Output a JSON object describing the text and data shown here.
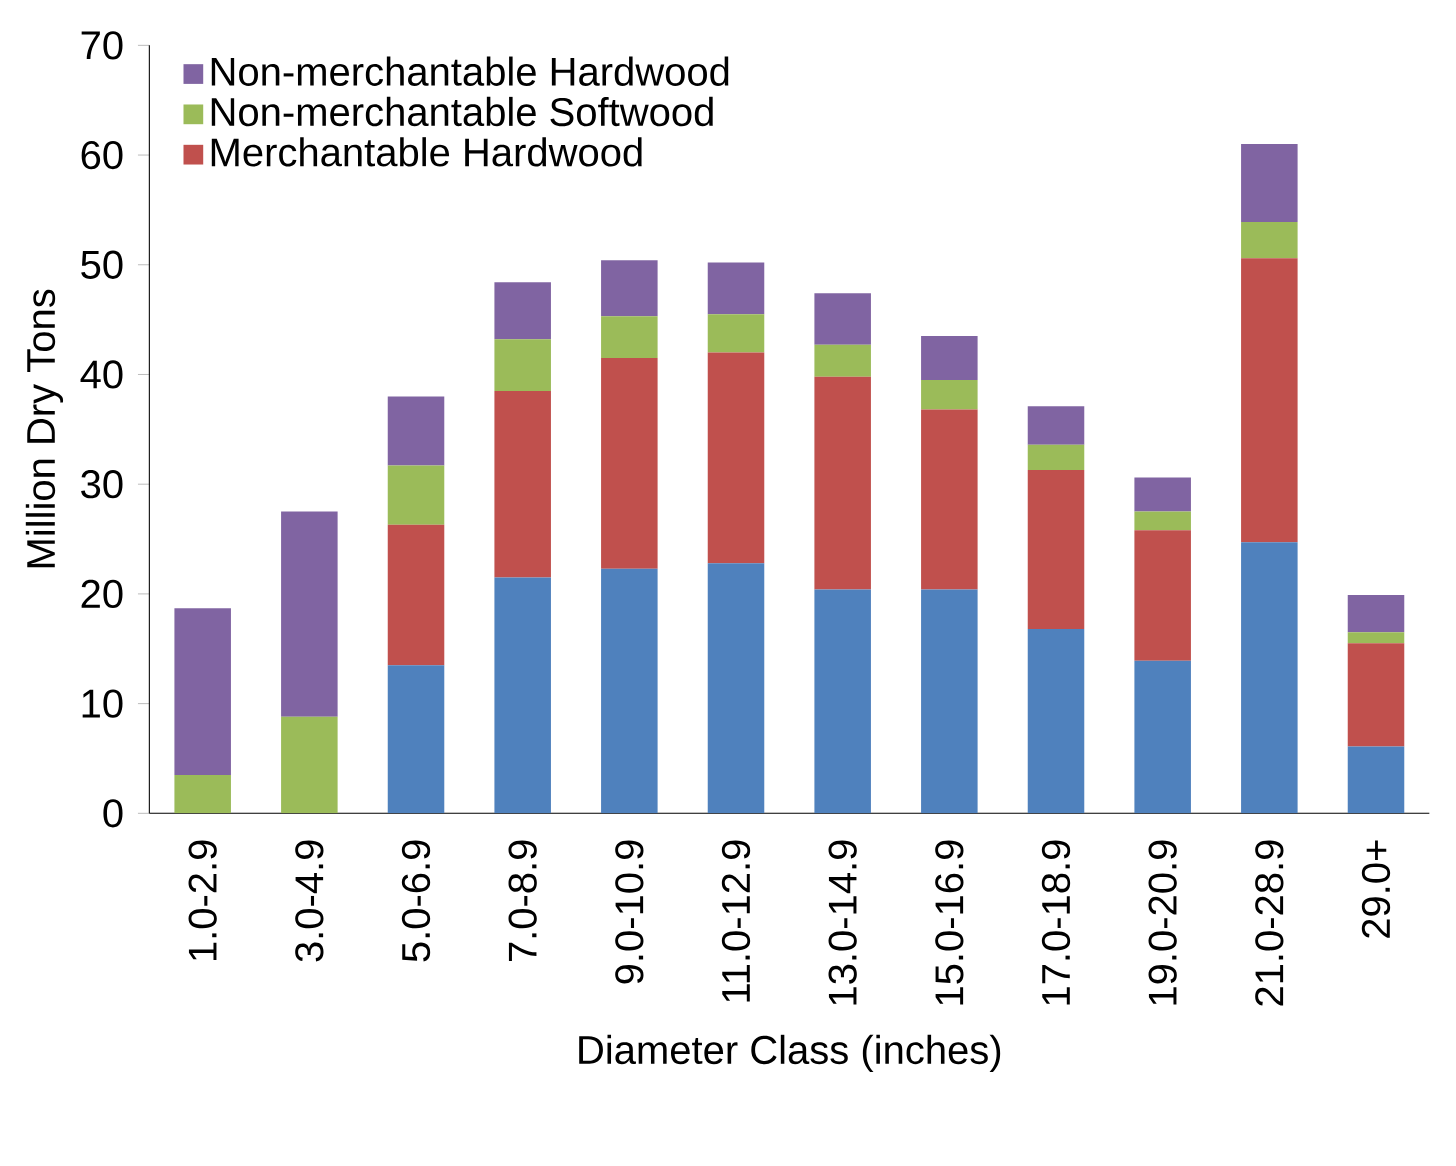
{
  "chart_data": {
    "type": "bar",
    "stacked": true,
    "xlabel": "Diameter Class (inches)",
    "ylabel": "Million Dry Tons",
    "categories": [
      "1.0-2.9",
      "3.0-4.9",
      "5.0-6.9",
      "7.0-8.9",
      "9.0-10.9",
      "11.0-12.9",
      "13.0-14.9",
      "15.0-16.9",
      "17.0-18.9",
      "19.0-20.9",
      "21.0-28.9",
      "29.0+"
    ],
    "series": [
      {
        "color": "#4f81bd",
        "values": [
          0,
          0,
          13.5,
          21.5,
          22.3,
          22.8,
          20.4,
          20.4,
          16.8,
          13.9,
          24.7,
          6.1
        ]
      },
      {
        "name": "Merchantable Hardwood",
        "color": "#c0504d",
        "values": [
          0,
          0,
          12.8,
          17.0,
          19.2,
          19.2,
          19.4,
          16.4,
          14.5,
          11.9,
          25.9,
          9.4
        ]
      },
      {
        "name": "Non-merchantable Softwood",
        "color": "#9bbb59",
        "values": [
          3.5,
          8.8,
          5.4,
          4.7,
          3.8,
          3.5,
          2.9,
          2.7,
          2.3,
          1.7,
          3.3,
          1.0
        ]
      },
      {
        "name": "Non-merchantable Hardwood",
        "color": "#8064a2",
        "values": [
          15.2,
          18.7,
          6.3,
          5.2,
          5.1,
          4.7,
          4.7,
          4.0,
          3.5,
          3.1,
          7.1,
          3.4
        ]
      }
    ],
    "ylim": [
      0,
      70
    ],
    "yticks": [
      0,
      10,
      20,
      30,
      40,
      50,
      60,
      70
    ],
    "grid": false,
    "legend": "top left"
  }
}
